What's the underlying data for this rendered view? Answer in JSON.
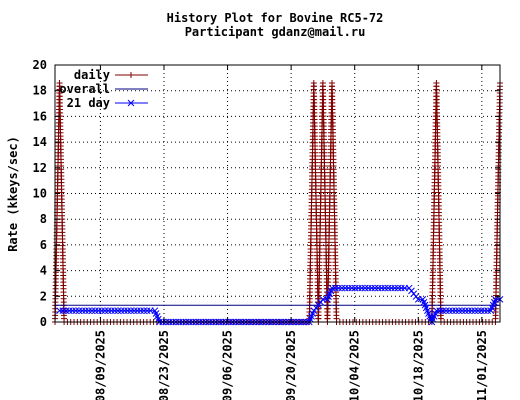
{
  "chart_data": {
    "type": "line",
    "title": "History Plot for Bovine RC5-72",
    "subtitle": "Participant gdanz@mail.ru",
    "ylabel": "Rate (kkeys/sec)",
    "xlabel": "",
    "ylim": [
      0,
      20
    ],
    "yticks": [
      0,
      2,
      4,
      6,
      8,
      10,
      12,
      14,
      16,
      18,
      20
    ],
    "xlim": [
      "2025-07-30",
      "2025-11-05"
    ],
    "xticks": [
      "2025-08-09",
      "2025-08-23",
      "2025-09-06",
      "2025-09-20",
      "2025-10-04",
      "2025-10-18",
      "2025-11-01"
    ],
    "xtick_labels": [
      "08/09/2025",
      "08/23/2025",
      "09/06/2025",
      "09/20/2025",
      "10/04/2025",
      "10/18/2025",
      "11/01/2025"
    ],
    "grid": true,
    "legend_position": "top-left",
    "series": [
      {
        "name": "daily",
        "color": "#800000",
        "marker": "plus",
        "points": [
          [
            "2025-07-30",
            0
          ],
          [
            "2025-07-31",
            18.6
          ],
          [
            "2025-08-01",
            0
          ],
          [
            "2025-09-24",
            0
          ],
          [
            "2025-09-25",
            18.6
          ],
          [
            "2025-09-26",
            0
          ],
          [
            "2025-09-27",
            18.6
          ],
          [
            "2025-09-28",
            0
          ],
          [
            "2025-09-29",
            18.6
          ],
          [
            "2025-09-30",
            0
          ],
          [
            "2025-10-21",
            0
          ],
          [
            "2025-10-22",
            18.6
          ],
          [
            "2025-10-23",
            0
          ],
          [
            "2025-11-04",
            0
          ],
          [
            "2025-11-05",
            18.6
          ]
        ]
      },
      {
        "name": "overall",
        "color": "#000080",
        "points": [
          [
            "2025-07-30",
            1.3
          ],
          [
            "2025-11-05",
            1.3
          ]
        ]
      },
      {
        "name": "21 day",
        "color": "#0000ff",
        "marker": "cross",
        "points": [
          [
            "2025-07-31",
            0.88
          ],
          [
            "2025-08-20",
            0.88
          ],
          [
            "2025-08-21",
            0.88
          ],
          [
            "2025-08-22",
            0.0
          ],
          [
            "2025-09-24",
            0.0
          ],
          [
            "2025-09-25",
            0.88
          ],
          [
            "2025-09-27",
            1.76
          ],
          [
            "2025-09-28",
            1.76
          ],
          [
            "2025-09-29",
            2.64
          ],
          [
            "2025-10-15",
            2.64
          ],
          [
            "2025-10-16",
            2.64
          ],
          [
            "2025-10-18",
            1.76
          ],
          [
            "2025-10-19",
            1.76
          ],
          [
            "2025-10-20",
            0.88
          ],
          [
            "2025-10-21",
            0.0
          ],
          [
            "2025-10-22",
            0.88
          ],
          [
            "2025-11-03",
            0.88
          ],
          [
            "2025-11-04",
            1.76
          ],
          [
            "2025-11-05",
            1.76
          ]
        ]
      }
    ]
  }
}
